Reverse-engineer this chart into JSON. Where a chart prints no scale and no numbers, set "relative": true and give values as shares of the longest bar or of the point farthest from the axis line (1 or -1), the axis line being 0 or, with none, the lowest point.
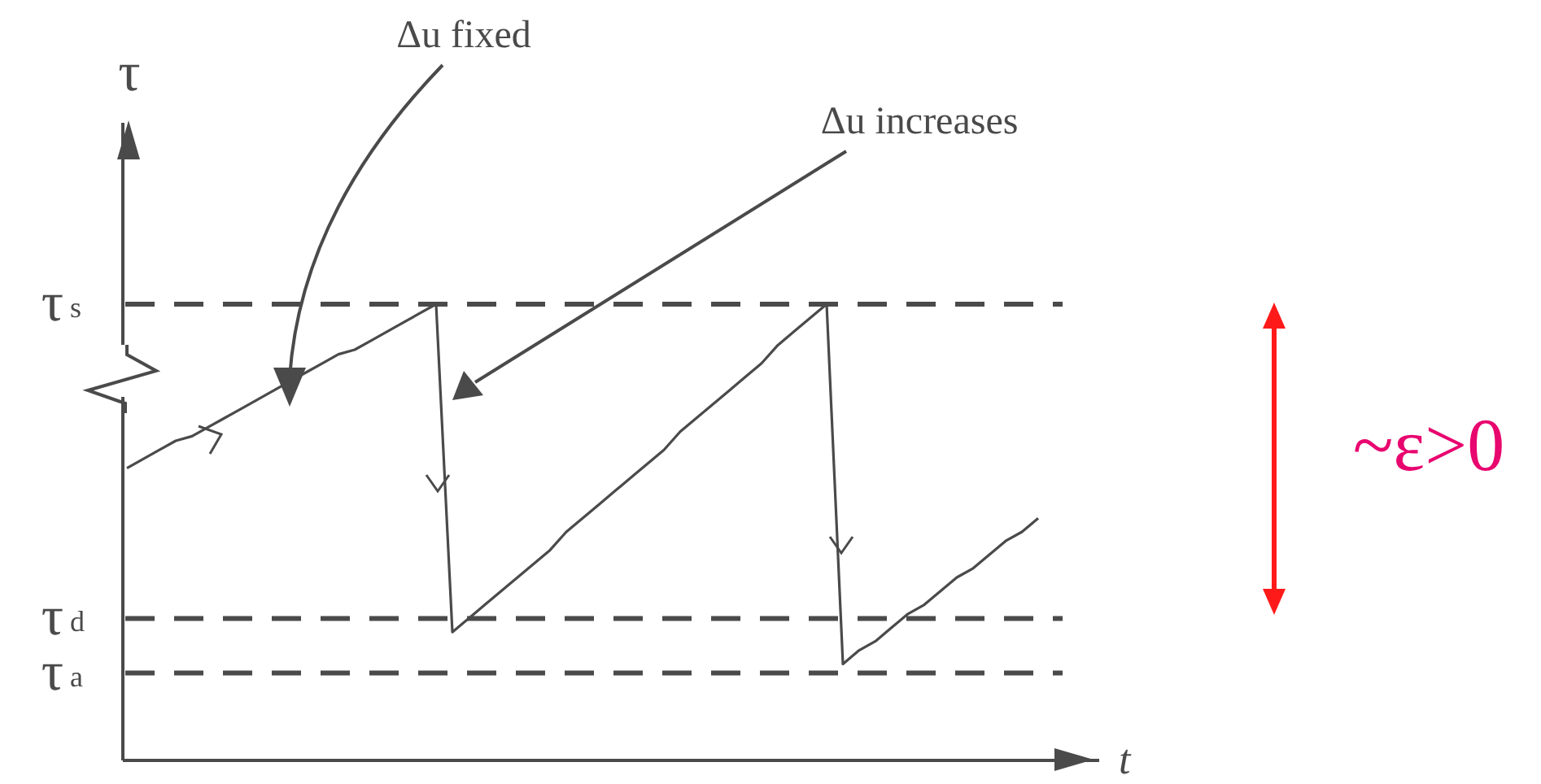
{
  "chart_data": {
    "type": "line",
    "relative": true,
    "xlabel": "t",
    "ylabel": "τ",
    "color": "#4a4a4a",
    "categories": [
      null,
      null,
      null,
      null,
      null,
      null,
      null,
      null,
      null,
      null,
      null,
      null,
      null,
      null,
      null,
      null,
      null,
      null,
      null,
      null,
      null,
      null,
      null,
      null,
      null,
      null,
      null,
      null,
      null,
      null,
      null,
      null,
      null,
      null,
      null,
      null,
      null,
      null,
      null,
      null,
      null,
      null,
      null,
      null,
      null,
      null,
      null,
      null,
      null,
      null,
      null,
      null,
      null,
      null,
      null,
      null,
      null
    ],
    "values": [
      0.64,
      0.66,
      0.68,
      0.7,
      0.71,
      0.73,
      0.75,
      0.77,
      0.79,
      0.81,
      0.83,
      0.85,
      0.87,
      0.89,
      0.9,
      0.92,
      0.94,
      0.96,
      0.98,
      1.0,
      0.28,
      0.31,
      0.34,
      0.37,
      0.4,
      0.43,
      0.46,
      0.5,
      0.53,
      0.56,
      0.59,
      0.62,
      0.65,
      0.68,
      0.72,
      0.75,
      0.78,
      0.81,
      0.84,
      0.87,
      0.91,
      0.94,
      0.97,
      1.0,
      0.21,
      0.24,
      0.26,
      0.29,
      0.32,
      0.34,
      0.37,
      0.4,
      0.42,
      0.45,
      0.48,
      0.5,
      0.53
    ],
    "ref_lines": [
      {
        "axis": "y",
        "value": 1.0,
        "label": "τ$_{s}$",
        "line_style": "dashed"
      },
      {
        "axis": "y",
        "value": 0.31,
        "label": "τ$_{d}$",
        "line_style": "dashed"
      },
      {
        "axis": "y",
        "value": 0.19,
        "label": "τ$_{a}$",
        "line_style": "dashed"
      }
    ],
    "annotations": [
      "Δu fixed",
      "Δu increases",
      "~ε>0"
    ]
  }
}
